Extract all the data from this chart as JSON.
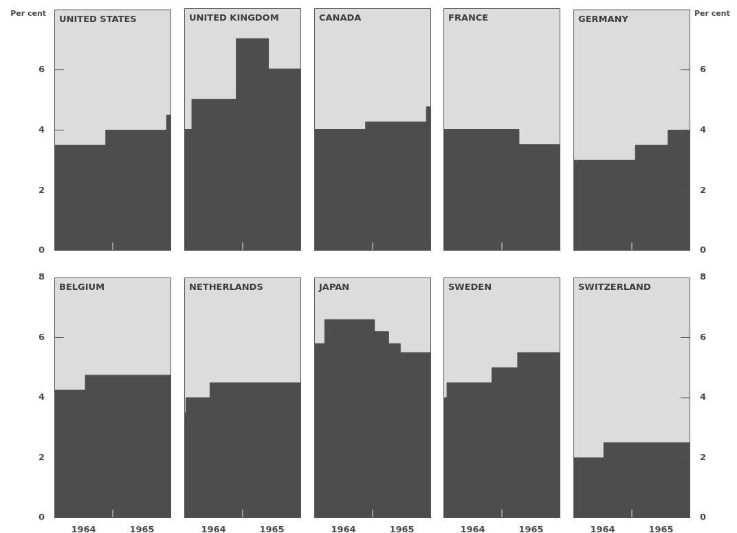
{
  "chart_data": [
    {
      "type": "area",
      "title": "UNITED STATES",
      "ylabel": "Per cent",
      "x": [
        1964,
        1964.88,
        1964.88,
        1965.92,
        1965.92,
        1966
      ],
      "values": [
        3.5,
        3.5,
        4,
        4,
        4.5,
        4.5
      ],
      "color": "#4d4d4d",
      "xlim": [
        1964,
        1966
      ],
      "ylim": [
        0,
        8
      ],
      "xticks": [
        {
          "value": 1965,
          "label": null
        }
      ],
      "yticks": [
        0,
        2,
        4,
        6
      ],
      "tick_labels": "y"
    },
    {
      "type": "area",
      "title": "UNITED KINGDOM",
      "x": [
        1964,
        1964.13,
        1964.13,
        1964.89,
        1964.89,
        1965.44,
        1965.44,
        1966
      ],
      "values": [
        4,
        4,
        5,
        5,
        7,
        7,
        6,
        6
      ],
      "color": "#4d4d4d",
      "xlim": [
        1964,
        1966
      ],
      "ylim": [
        0,
        8
      ],
      "xticks": [
        {
          "value": 1965,
          "label": null
        }
      ],
      "yticks": [
        0,
        2,
        4,
        6
      ],
      "tick_labels": false
    },
    {
      "type": "area",
      "title": "CANADA",
      "x": [
        1964,
        1964.88,
        1964.88,
        1965.92,
        1965.92,
        1966
      ],
      "values": [
        4,
        4,
        4.25,
        4.25,
        4.75,
        4.75
      ],
      "color": "#4d4d4d",
      "xlim": [
        1964,
        1966
      ],
      "ylim": [
        0,
        8
      ],
      "xticks": [
        {
          "value": 1965,
          "label": null
        }
      ],
      "yticks": [
        0,
        2,
        4,
        6
      ],
      "tick_labels": false
    },
    {
      "type": "area",
      "title": "FRANCE",
      "x": [
        1964,
        1965.29,
        1965.29,
        1966
      ],
      "values": [
        4,
        4,
        3.5,
        3.5
      ],
      "color": "#4d4d4d",
      "xlim": [
        1964,
        1966
      ],
      "ylim": [
        0,
        8
      ],
      "xticks": [
        {
          "value": 1965,
          "label": null
        }
      ],
      "yticks": [
        0,
        2,
        4,
        6
      ],
      "tick_labels": false
    },
    {
      "type": "area",
      "title": "GERMANY",
      "ylabel": "Per cent",
      "x": [
        1964,
        1965.06,
        1965.06,
        1965.62,
        1965.62,
        1966
      ],
      "values": [
        3,
        3,
        3.5,
        3.5,
        4,
        4
      ],
      "color": "#4d4d4d",
      "xlim": [
        1964,
        1966
      ],
      "ylim": [
        0,
        8
      ],
      "xticks": [
        {
          "value": 1965,
          "label": null
        }
      ],
      "yticks": [
        0,
        2,
        4,
        6
      ],
      "tick_labels": "y"
    },
    {
      "type": "area",
      "title": "BELGIUM",
      "x": [
        1964,
        1964.53,
        1964.53,
        1966
      ],
      "values": [
        4.25,
        4.25,
        4.75,
        4.75
      ],
      "color": "#4d4d4d",
      "xlim": [
        1964,
        1966
      ],
      "ylim": [
        0,
        8
      ],
      "xticks": [
        {
          "value": 1964.5,
          "label": "1964"
        },
        {
          "value": 1965,
          "label": null
        },
        {
          "value": 1965.5,
          "label": "1965"
        }
      ],
      "yticks": [
        0,
        2,
        4,
        6,
        8
      ]
    },
    {
      "type": "area",
      "title": "NETHERLANDS",
      "x": [
        1964,
        1964.03,
        1964.03,
        1964.44,
        1964.44,
        1966
      ],
      "values": [
        3.5,
        3.5,
        4,
        4,
        4.5,
        4.5
      ],
      "color": "#4d4d4d",
      "xlim": [
        1964,
        1966
      ],
      "ylim": [
        0,
        8
      ],
      "xticks": [
        {
          "value": 1964.5,
          "label": "1964"
        },
        {
          "value": 1965,
          "label": null
        },
        {
          "value": 1965.5,
          "label": "1965"
        }
      ],
      "yticks": [
        0,
        2,
        4,
        6,
        8
      ],
      "tick_labels": "x"
    },
    {
      "type": "area",
      "title": "JAPAN",
      "x": [
        1964,
        1964.18,
        1964.18,
        1965.03,
        1965.03,
        1965.27,
        1965.27,
        1965.47,
        1965.47,
        1966
      ],
      "values": [
        5.8,
        5.8,
        6.6,
        6.6,
        6.2,
        6.2,
        5.8,
        5.8,
        5.5,
        5.5
      ],
      "color": "#4d4d4d",
      "xlim": [
        1964,
        1966
      ],
      "ylim": [
        0,
        8
      ],
      "xticks": [
        {
          "value": 1964.5,
          "label": "1964"
        },
        {
          "value": 1965,
          "label": null
        },
        {
          "value": 1965.5,
          "label": "1965"
        }
      ],
      "yticks": [
        0,
        2,
        4,
        6,
        8
      ],
      "tick_labels": "x"
    },
    {
      "type": "area",
      "title": "SWEDEN",
      "x": [
        1964,
        1964.06,
        1964.06,
        1964.83,
        1964.83,
        1965.27,
        1965.27,
        1966
      ],
      "values": [
        4,
        4,
        4.5,
        4.5,
        5,
        5,
        5.5,
        5.5
      ],
      "color": "#4d4d4d",
      "xlim": [
        1964,
        1966
      ],
      "ylim": [
        0,
        8
      ],
      "xticks": [
        {
          "value": 1964.5,
          "label": "1964"
        },
        {
          "value": 1965,
          "label": null
        },
        {
          "value": 1965.5,
          "label": "1965"
        }
      ],
      "yticks": [
        0,
        2,
        4,
        6,
        8
      ],
      "tick_labels": "x"
    },
    {
      "type": "area",
      "title": "SWITZERLAND",
      "x": [
        1964,
        1964.52,
        1964.52,
        1966
      ],
      "values": [
        2,
        2,
        2.5,
        2.5
      ],
      "color": "#4d4d4d",
      "xlim": [
        1964,
        1966
      ],
      "ylim": [
        0,
        8
      ],
      "xticks": [
        {
          "value": 1964.5,
          "label": "1964"
        },
        {
          "value": 1965,
          "label": null
        },
        {
          "value": 1965.5,
          "label": "1965"
        }
      ],
      "yticks": [
        0,
        2,
        4,
        6,
        8
      ]
    }
  ]
}
